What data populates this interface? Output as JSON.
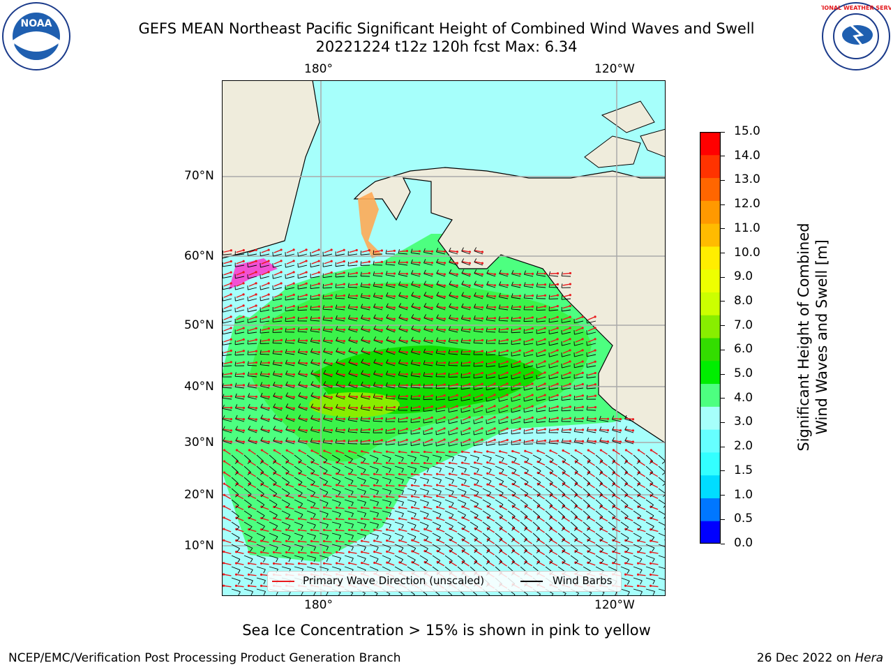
{
  "header": {
    "title_line1": "GEFS MEAN Northeast Pacific Significant Height of Combined Wind Waves and Swell",
    "title_line2": "20221224 t12z 120h fcst   Max: 6.34"
  },
  "logos": {
    "left": {
      "name": "noaa-logo",
      "text": "NOAA"
    },
    "right": {
      "name": "national-weather-service-logo",
      "text": "NATIONAL WEATHER SERVICE"
    }
  },
  "map": {
    "lon_labels_top": [
      "180°",
      "120°W"
    ],
    "lon_labels_bottom": [
      "180°",
      "120°W"
    ],
    "lat_labels": [
      "70°N",
      "60°N",
      "50°N",
      "40°N",
      "30°N",
      "20°N",
      "10°N"
    ],
    "colors": {
      "land": "#efecdc",
      "ocean": "#a6fffb",
      "wave_arrows": "#e8191c",
      "wind_barbs": "#000000",
      "sea_ice": "#ff33cc"
    }
  },
  "legend": {
    "wave_label": "Primary Wave Direction (unscaled)",
    "barb_label": "Wind Barbs"
  },
  "colorbar": {
    "label_line1": "Significant Height of Combined",
    "label_line2": "Wind Waves and Swell [m]",
    "ticks": [
      "15.0",
      "14.0",
      "13.0",
      "12.0",
      "11.0",
      "10.0",
      "9.0",
      "8.0",
      "7.0",
      "6.0",
      "5.0",
      "4.0",
      "3.0",
      "2.0",
      "1.5",
      "1.0",
      "0.5",
      "0.0"
    ],
    "colors_bottom_to_top": [
      "#0000ff",
      "#0077ff",
      "#00ddff",
      "#33ffff",
      "#66ffff",
      "#a6fffb",
      "#4dff80",
      "#00ee00",
      "#33dd00",
      "#88ee00",
      "#ccff00",
      "#eeff00",
      "#ffee00",
      "#ffbb00",
      "#ff9900",
      "#ff6600",
      "#ff3300",
      "#ff0000"
    ]
  },
  "notes": {
    "sea_ice": "Sea Ice Concentration > 15% is shown in pink to yellow"
  },
  "footer": {
    "left": "NCEP/EMC/Verification Post Processing Product Generation Branch",
    "right_date": "26 Dec 2022 on ",
    "right_host": "Hera"
  }
}
